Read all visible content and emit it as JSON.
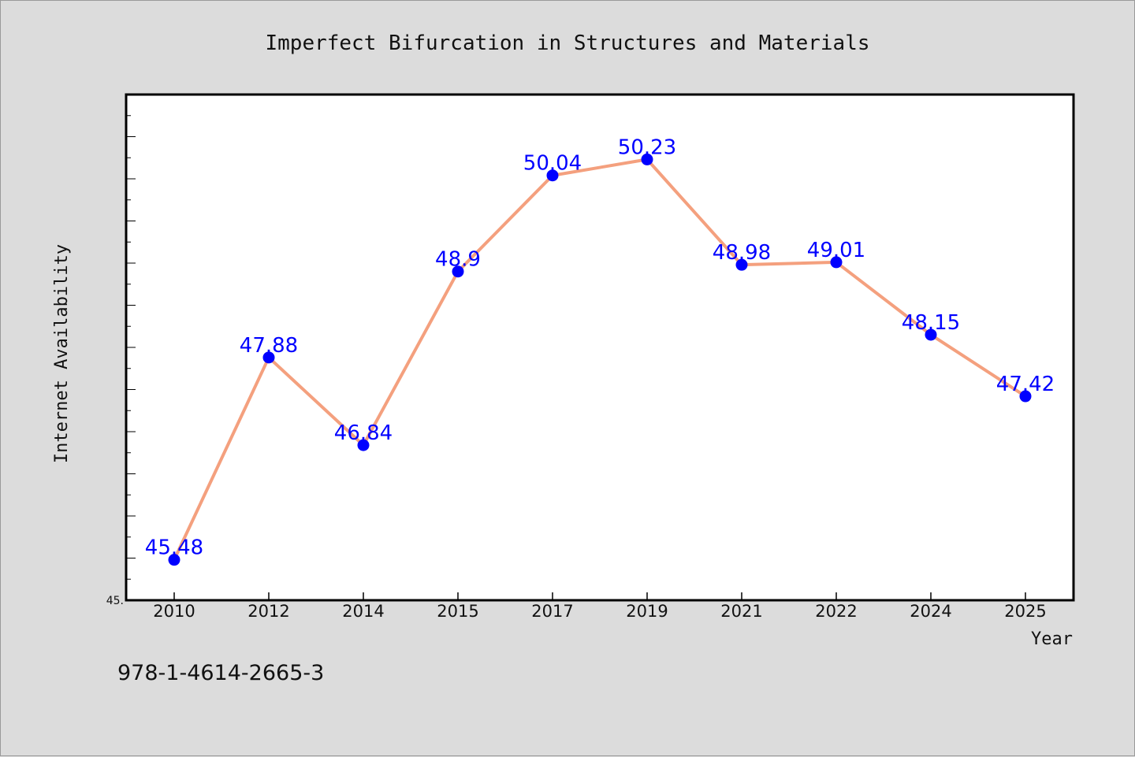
{
  "chart_data": {
    "type": "line",
    "title": "Imperfect Bifurcation in Structures and Materials",
    "xlabel": "Year",
    "ylabel": "Internet Availability",
    "categories": [
      "2010",
      "2012",
      "2014",
      "2015",
      "2017",
      "2019",
      "2021",
      "2022",
      "2024",
      "2025"
    ],
    "series": [
      {
        "values": [
          45.48,
          47.88,
          46.84,
          48.9,
          50.04,
          50.23,
          48.98,
          49.01,
          48.15,
          47.42
        ],
        "data_labels": [
          "45.48",
          "47.88",
          "46.84",
          "48.9",
          "50.04",
          "50.23",
          "48.98",
          "49.01",
          "48.15",
          "47.42"
        ],
        "line_color": "#f4a07e",
        "marker_color": "#0000ff"
      }
    ],
    "ylim": [
      45.0,
      51.0
    ],
    "y_tick_labels": [
      "45."
    ],
    "grid": false,
    "legend": false,
    "label_color": "#0000ff"
  },
  "footer_text": "978-1-4614-2665-3",
  "colors": {
    "background": "#dcdcdc",
    "plot_background": "#ffffff",
    "axis": "#000000"
  }
}
